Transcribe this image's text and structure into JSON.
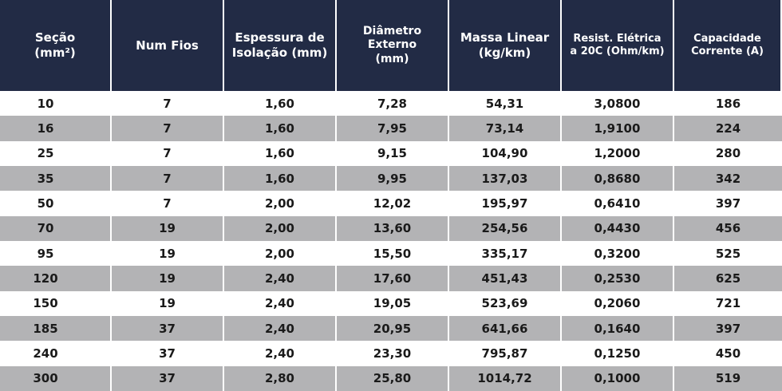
{
  "headers": [
    "Seção\n(mm²)",
    "Num Fios",
    "Espessura de\nIsolação (mm)",
    "Diâmetro Externo\n(mm)",
    "Massa Linear\n(kg/km)",
    "Resist. Elétrica\na 20C (Ohm/km)",
    "Capacidade\nCorrente (A)"
  ],
  "rows": [
    [
      "10",
      "7",
      "1,60",
      "7,28",
      "54,31",
      "3,0800",
      "186"
    ],
    [
      "16",
      "7",
      "1,60",
      "7,95",
      "73,14",
      "1,9100",
      "224"
    ],
    [
      "25",
      "7",
      "1,60",
      "9,15",
      "104,90",
      "1,2000",
      "280"
    ],
    [
      "35",
      "7",
      "1,60",
      "9,95",
      "137,03",
      "0,8680",
      "342"
    ],
    [
      "50",
      "7",
      "2,00",
      "12,02",
      "195,97",
      "0,6410",
      "397"
    ],
    [
      "70",
      "19",
      "2,00",
      "13,60",
      "254,56",
      "0,4430",
      "456"
    ],
    [
      "95",
      "19",
      "2,00",
      "15,50",
      "335,17",
      "0,3200",
      "525"
    ],
    [
      "120",
      "19",
      "2,40",
      "17,60",
      "451,43",
      "0,2530",
      "625"
    ],
    [
      "150",
      "19",
      "2,40",
      "19,05",
      "523,69",
      "0,2060",
      "721"
    ],
    [
      "185",
      "37",
      "2,40",
      "20,95",
      "641,66",
      "0,1640",
      "397"
    ],
    [
      "240",
      "37",
      "2,40",
      "23,30",
      "795,87",
      "0,1250",
      "450"
    ],
    [
      "300",
      "37",
      "2,80",
      "25,80",
      "1014,72",
      "0,1000",
      "519"
    ]
  ],
  "colors": {
    "header_bg": "#222b45",
    "header_text": "#ffffff",
    "row_shade": "#b3b3b5",
    "row_plain": "#ffffff",
    "cell_text": "#1a1a1a"
  }
}
